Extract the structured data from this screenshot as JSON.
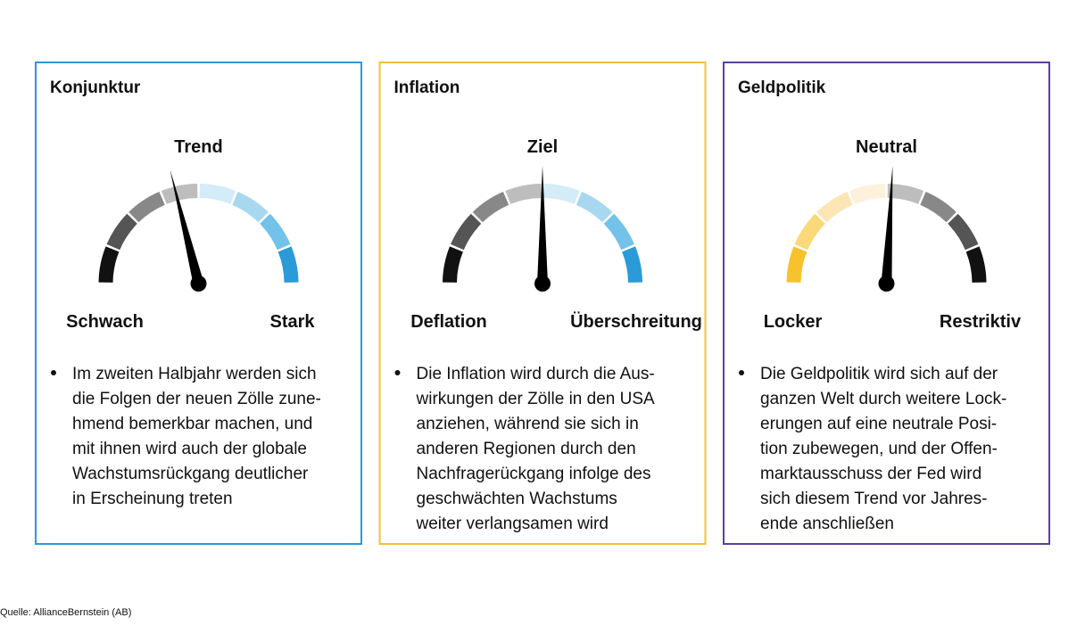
{
  "panels": [
    {
      "title": "Konjunktur",
      "top": "Trend",
      "left": "Schwach",
      "right": "Stark",
      "bullet": [
        "Im zweiten Halbjahr werden sich",
        "die Folgen der neuen Zölle zune-",
        "hmend bemerkbar machen, und",
        "mit ihnen wird auch der globale",
        "Wachstumsrückgang deutlicher",
        "in Erscheinung treten"
      ]
    },
    {
      "title": "Inflation",
      "top": "Ziel",
      "left": "Deflation",
      "right": "Überschreitung",
      "bullet": [
        "Die Inflation wird durch die Aus-",
        "wirkungen der Zölle in den USA",
        "anziehen, während sie sich in",
        "anderen Regionen durch den",
        "Nachfragerückgang infolge des",
        "geschwächten Wachstums",
        "weiter verlangsamen wird"
      ]
    },
    {
      "title": "Geldpolitik",
      "top": "Neutral",
      "left": "Locker",
      "right": "Restriktiv",
      "bullet": [
        "Die Geldpolitik wird sich auf der",
        "ganzen Welt durch weitere Lock-",
        "erungen auf eine neutrale Posi-",
        "tion zubewegen, und der Offen-",
        "marktausschuss der Fed wird",
        "sich diesem Trend vor Jahres-",
        "ende anschließen"
      ]
    }
  ],
  "source": "Quelle: AllianceBernstein (AB)"
}
